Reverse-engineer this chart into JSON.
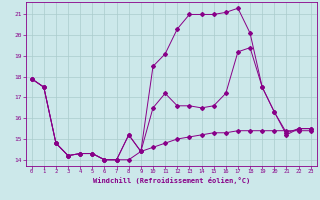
{
  "xlabel": "Windchill (Refroidissement éolien,°C)",
  "bg_color": "#cce8ea",
  "line_color": "#880088",
  "grid_color": "#aacccc",
  "xlim": [
    -0.5,
    23.5
  ],
  "ylim": [
    13.7,
    21.6
  ],
  "yticks": [
    14,
    15,
    16,
    17,
    18,
    19,
    20,
    21
  ],
  "xticks": [
    0,
    1,
    2,
    3,
    4,
    5,
    6,
    7,
    8,
    9,
    10,
    11,
    12,
    13,
    14,
    15,
    16,
    17,
    18,
    19,
    20,
    21,
    22,
    23
  ],
  "series1_x": [
    0,
    1,
    2,
    3,
    4,
    5,
    6,
    7,
    8,
    9,
    10,
    11,
    12,
    13,
    14,
    15,
    16,
    17,
    18,
    19,
    20,
    21,
    22,
    23
  ],
  "series1_y": [
    17.9,
    17.5,
    14.8,
    14.2,
    14.3,
    14.3,
    14.0,
    14.0,
    14.0,
    14.4,
    14.6,
    14.8,
    15.0,
    15.1,
    15.2,
    15.3,
    15.3,
    15.4,
    15.4,
    15.4,
    15.4,
    15.4,
    15.4,
    15.4
  ],
  "series2_x": [
    0,
    1,
    2,
    3,
    4,
    5,
    6,
    7,
    8,
    9,
    10,
    11,
    12,
    13,
    14,
    15,
    16,
    17,
    18,
    19,
    20,
    21,
    22,
    23
  ],
  "series2_y": [
    17.9,
    17.5,
    14.8,
    14.2,
    14.3,
    14.3,
    14.0,
    14.0,
    15.2,
    14.4,
    16.5,
    17.2,
    16.6,
    16.6,
    16.5,
    16.6,
    17.2,
    19.2,
    19.4,
    17.5,
    16.3,
    15.3,
    15.5,
    15.5
  ],
  "series3_x": [
    0,
    1,
    2,
    3,
    4,
    5,
    6,
    7,
    8,
    9,
    10,
    11,
    12,
    13,
    14,
    15,
    16,
    17,
    18,
    19,
    20,
    21,
    22,
    23
  ],
  "series3_y": [
    17.9,
    17.5,
    14.8,
    14.2,
    14.3,
    14.3,
    14.0,
    14.0,
    15.2,
    14.4,
    18.5,
    19.1,
    20.3,
    21.0,
    21.0,
    21.0,
    21.1,
    21.3,
    20.1,
    17.5,
    16.3,
    15.2,
    15.5,
    15.5
  ]
}
